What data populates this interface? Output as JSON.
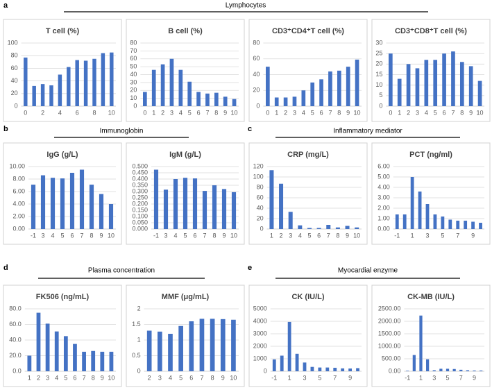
{
  "sections": [
    {
      "letter": "a",
      "title": "Lymphocytes"
    },
    {
      "letter": "b",
      "title": "Immunoglobin"
    },
    {
      "letter": "c",
      "title": "Inflammatory mediator"
    },
    {
      "letter": "d",
      "title": "Plasma concentration"
    },
    {
      "letter": "e",
      "title": "Myocardial enzyme"
    }
  ],
  "chart_data": [
    {
      "type": "bar",
      "title": "T cell (%)",
      "color": "#4472c4",
      "grid": true,
      "categories": [
        "0",
        null,
        "2",
        null,
        "4",
        null,
        "6",
        null,
        "8",
        null,
        "10"
      ],
      "values": [
        77,
        32,
        35,
        33,
        50,
        62,
        73,
        72,
        75,
        84,
        85
      ],
      "ylim": [
        0,
        100
      ],
      "yticks": [
        0,
        20,
        40,
        60,
        80,
        100
      ]
    },
    {
      "type": "bar",
      "title": "B cell (%)",
      "color": "#4472c4",
      "grid": true,
      "categories": [
        "0",
        "1",
        "2",
        "3",
        "4",
        "5",
        "6",
        "7",
        "8",
        "9",
        "10"
      ],
      "values": [
        18,
        46,
        53,
        60,
        46,
        31,
        18,
        16,
        17,
        12,
        9
      ],
      "ylim": [
        0,
        80
      ],
      "yticks": [
        0,
        10,
        20,
        30,
        40,
        50,
        60,
        70,
        80
      ]
    },
    {
      "type": "bar",
      "title": "CD3⁺CD4⁺T cell (%)",
      "color": "#4472c4",
      "grid": true,
      "categories": [
        "0",
        "1",
        "2",
        "3",
        "4",
        "5",
        "6",
        "7",
        "8",
        "9",
        "10"
      ],
      "values": [
        50,
        11,
        11,
        12,
        20,
        30,
        34,
        44,
        45,
        50,
        59
      ],
      "ylim": [
        0,
        80
      ],
      "yticks": [
        0,
        20,
        40,
        60,
        80
      ]
    },
    {
      "type": "bar",
      "title": "CD3⁺CD8⁺T cell (%)",
      "color": "#4472c4",
      "grid": true,
      "categories": [
        "0",
        "1",
        "2",
        "3",
        "4",
        "5",
        "6",
        "7",
        "8",
        "9",
        "10"
      ],
      "values": [
        25,
        13,
        20,
        18,
        22,
        22,
        25,
        26,
        21,
        19,
        12
      ],
      "ylim": [
        0,
        30
      ],
      "yticks": [
        0,
        5,
        10,
        15,
        20,
        25,
        30
      ]
    },
    {
      "type": "bar",
      "title": "IgG (g/L)",
      "color": "#4472c4",
      "grid": true,
      "categories": [
        "-1",
        "3",
        "4",
        "5",
        "6",
        "7",
        "8",
        "9",
        "10"
      ],
      "values": [
        7.1,
        8.6,
        8.2,
        8.1,
        9.0,
        9.5,
        7.1,
        5.6,
        4.0
      ],
      "ylim": [
        0,
        10
      ],
      "yticks": [
        {
          "value": 0,
          "label": "0.00"
        },
        {
          "value": 2,
          "label": "2.00"
        },
        {
          "value": 4,
          "label": "4.00"
        },
        {
          "value": 6,
          "label": "6.00"
        },
        {
          "value": 8,
          "label": "8.00"
        },
        {
          "value": 10,
          "label": "10.00"
        }
      ]
    },
    {
      "type": "bar",
      "title": "IgM (g/L)",
      "color": "#4472c4",
      "grid": true,
      "categories": [
        "-1",
        "3",
        "4",
        "5",
        "6",
        "7",
        "8",
        "9",
        "10"
      ],
      "values": [
        0.475,
        0.315,
        0.4,
        0.41,
        0.405,
        0.305,
        0.35,
        0.32,
        0.295
      ],
      "ylim": [
        0,
        0.5
      ],
      "yticks": [
        {
          "value": 0,
          "label": "0.000"
        },
        {
          "value": 0.05,
          "label": "0.050"
        },
        {
          "value": 0.1,
          "label": "0.100"
        },
        {
          "value": 0.15,
          "label": "0.150"
        },
        {
          "value": 0.2,
          "label": "0.200"
        },
        {
          "value": 0.25,
          "label": "0.250"
        },
        {
          "value": 0.3,
          "label": "0.300"
        },
        {
          "value": 0.35,
          "label": "0.350"
        },
        {
          "value": 0.4,
          "label": "0.400"
        },
        {
          "value": 0.45,
          "label": "0.450"
        },
        {
          "value": 0.5,
          "label": "0.500"
        }
      ]
    },
    {
      "type": "bar",
      "title": "CRP (mg/L)",
      "color": "#4472c4",
      "grid": true,
      "categories": [
        "1",
        "2",
        "3",
        "4",
        "5",
        "6",
        "7",
        "8",
        "9",
        "10"
      ],
      "values": [
        113,
        87,
        33,
        7,
        2,
        2,
        8,
        3,
        6,
        3
      ],
      "ylim": [
        0,
        120
      ],
      "yticks": [
        0,
        20,
        40,
        60,
        80,
        100,
        120
      ]
    },
    {
      "type": "bar",
      "title": "PCT (ng/ml)",
      "color": "#4472c4",
      "grid": true,
      "categories": [
        "-1",
        null,
        "1",
        null,
        "3",
        null,
        "5",
        null,
        "7",
        null,
        "9",
        null
      ],
      "values": [
        1.4,
        1.4,
        5.0,
        3.6,
        2.4,
        1.4,
        1.2,
        0.9,
        0.8,
        0.8,
        0.7,
        0.6
      ],
      "ylim": [
        0,
        6
      ],
      "yticks": [
        {
          "value": 0,
          "label": "0.00"
        },
        {
          "value": 1,
          "label": "1.00"
        },
        {
          "value": 2,
          "label": "2.00"
        },
        {
          "value": 3,
          "label": "3.00"
        },
        {
          "value": 4,
          "label": "4.00"
        },
        {
          "value": 5,
          "label": "5.00"
        },
        {
          "value": 6,
          "label": "6.00"
        }
      ]
    },
    {
      "type": "bar",
      "title": "FK506 (ng/mL)",
      "color": "#4472c4",
      "grid": true,
      "categories": [
        "1",
        "2",
        "3",
        "4",
        "5",
        "6",
        "7",
        "8",
        "9",
        "10"
      ],
      "values": [
        20,
        75,
        61,
        51,
        45,
        35,
        25,
        26,
        25,
        25
      ],
      "ylim": [
        0,
        80
      ],
      "yticks": [
        {
          "value": 0,
          "label": "0.0"
        },
        {
          "value": 20,
          "label": "20.0"
        },
        {
          "value": 40,
          "label": "40.0"
        },
        {
          "value": 60,
          "label": "60.0"
        },
        {
          "value": 80,
          "label": "80.0"
        }
      ]
    },
    {
      "type": "bar",
      "title": "MMF (μg/mL)",
      "color": "#4472c4",
      "grid": true,
      "categories": [
        "2",
        "3",
        "4",
        "5",
        "6",
        "7",
        "8",
        "9",
        "10"
      ],
      "values": [
        1.3,
        1.27,
        1.2,
        1.45,
        1.6,
        1.68,
        1.68,
        1.67,
        1.65
      ],
      "ylim": [
        0,
        2
      ],
      "yticks": [
        0,
        0.5,
        1,
        1.5,
        2
      ]
    },
    {
      "type": "bar",
      "title": "CK (IU/L)",
      "color": "#4472c4",
      "grid": true,
      "categories": [
        "-1",
        null,
        "1",
        null,
        "3",
        null,
        "5",
        null,
        "7",
        null,
        "9",
        null
      ],
      "values": [
        950,
        1250,
        3950,
        1400,
        700,
        350,
        300,
        300,
        280,
        230,
        220,
        250
      ],
      "ylim": [
        0,
        5000
      ],
      "yticks": [
        0,
        1000,
        2000,
        3000,
        4000,
        5000
      ]
    },
    {
      "type": "bar",
      "title": "CK-MB (IU/L)",
      "color": "#4472c4",
      "grid": true,
      "categories": [
        "-1",
        null,
        "1",
        null,
        "3",
        null,
        "5",
        null,
        "7",
        null,
        "9",
        null
      ],
      "values": [
        20,
        650,
        2230,
        480,
        40,
        100,
        100,
        90,
        60,
        40,
        30,
        30
      ],
      "ylim": [
        0,
        2500
      ],
      "yticks": [
        {
          "value": 0,
          "label": "0.00"
        },
        {
          "value": 500,
          "label": "500.00"
        },
        {
          "value": 1000,
          "label": "1000.00"
        },
        {
          "value": 1500,
          "label": "1500.00"
        },
        {
          "value": 2000,
          "label": "2000.00"
        },
        {
          "value": 2500,
          "label": "2500.00"
        }
      ]
    }
  ]
}
